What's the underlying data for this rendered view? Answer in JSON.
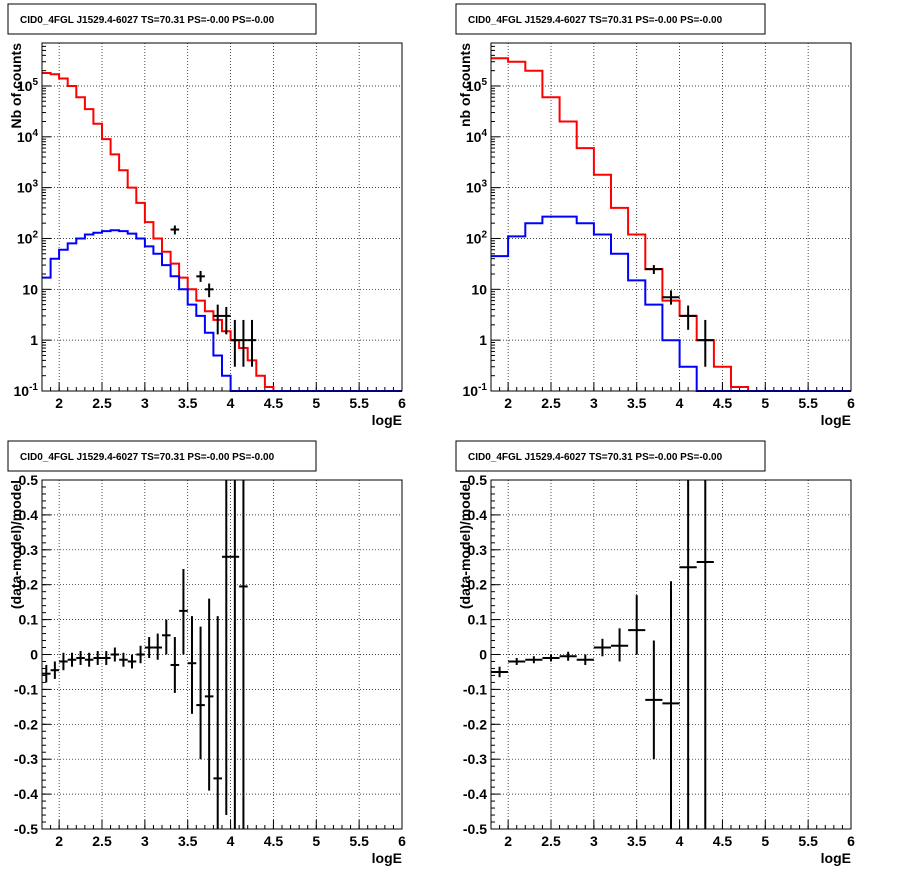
{
  "chart_data": [
    {
      "panel": "top-left",
      "type": "histogram",
      "title": "CID0_4FGL J1529.4-6027 TS=70.31 PS=-0.00 PS=-0.00",
      "xlabel": "logE",
      "ylabel": "Nb of counts",
      "log_y": true,
      "xlim": [
        1.8,
        6.0
      ],
      "ylim": [
        0.1,
        700000
      ],
      "grid": true,
      "x_ticks": [
        "2",
        "2.5",
        "3",
        "3.5",
        "4",
        "4.5",
        "5",
        "5.5",
        "6"
      ],
      "y_ticks": [
        "10^-1",
        "1",
        "10",
        "10^2",
        "10^3",
        "10^4",
        "10^5"
      ],
      "bin_edges": [
        1.8,
        1.9,
        2.0,
        2.1,
        2.2,
        2.3,
        2.4,
        2.5,
        2.6,
        2.7,
        2.8,
        2.9,
        3.0,
        3.1,
        3.2,
        3.3,
        3.4,
        3.5,
        3.6,
        3.7,
        3.8,
        3.9,
        4.0,
        4.1,
        4.2,
        4.3,
        4.4,
        4.5,
        4.6,
        4.7,
        4.8,
        4.9,
        5.0,
        5.1,
        5.2,
        5.3,
        5.4,
        5.5,
        5.6,
        5.7,
        5.8,
        5.9,
        6.0
      ],
      "series": [
        {
          "color": "#ff0000",
          "values": [
            180000,
            170000,
            140000,
            100000,
            60000,
            35000,
            18000,
            9000,
            4500,
            2200,
            1000,
            500,
            210,
            100,
            55,
            32,
            17,
            10,
            6,
            3.7,
            2.5,
            1.5,
            1.0,
            0.7,
            0.4,
            0.2,
            0.12,
            0.1,
            0.1,
            0.1,
            0.1,
            0.1,
            0.1,
            0.1,
            0.1,
            0.1,
            0.1,
            0.1,
            0.1,
            0.1,
            0.1,
            0.1
          ]
        },
        {
          "color": "#0000ff",
          "values": [
            17,
            40,
            60,
            80,
            100,
            120,
            130,
            140,
            145,
            140,
            125,
            100,
            70,
            50,
            30,
            18,
            10,
            5,
            3,
            1.4,
            0.5,
            0.2,
            0.1,
            0.1,
            0.1,
            0.1,
            0.1,
            0.1,
            0.1,
            0.1,
            0.1,
            0.1,
            0.1,
            0.1,
            0.1,
            0.1,
            0.1,
            0.1,
            0.1,
            0.1,
            0.1,
            0.1
          ]
        }
      ],
      "points": [
        {
          "x": 3.35,
          "y": 150,
          "xerr": 0.05,
          "ylo": 120,
          "yhi": 180
        },
        {
          "x": 3.65,
          "y": 18,
          "xerr": 0.05,
          "ylo": 14,
          "yhi": 23
        },
        {
          "x": 3.75,
          "y": 10,
          "xerr": 0.05,
          "ylo": 7,
          "yhi": 13
        },
        {
          "x": 3.85,
          "y": 3,
          "xerr": 0.05,
          "ylo": 1.3,
          "yhi": 5
        },
        {
          "x": 3.95,
          "y": 3,
          "xerr": 0.05,
          "ylo": 1.3,
          "yhi": 4.5
        },
        {
          "x": 4.05,
          "y": 1,
          "xerr": 0.05,
          "ylo": 0.3,
          "yhi": 2.5
        },
        {
          "x": 4.15,
          "y": 1,
          "xerr": 0.05,
          "ylo": 0.3,
          "yhi": 2.5
        },
        {
          "x": 4.25,
          "y": 1,
          "xerr": 0.05,
          "ylo": 0.3,
          "yhi": 2.5
        }
      ]
    },
    {
      "panel": "top-right",
      "type": "histogram",
      "title": "CID0_4FGL J1529.4-6027 TS=70.31 PS=-0.00 PS=-0.00",
      "xlabel": "logE",
      "ylabel": "nb of counts",
      "log_y": true,
      "xlim": [
        1.8,
        6.0
      ],
      "ylim": [
        0.1,
        700000
      ],
      "grid": true,
      "x_ticks": [
        "2",
        "2.5",
        "3",
        "3.5",
        "4",
        "4.5",
        "5",
        "5.5",
        "6"
      ],
      "y_ticks": [
        "10^-1",
        "1",
        "10",
        "10^2",
        "10^3",
        "10^4",
        "10^5"
      ],
      "bin_edges": [
        1.8,
        2.0,
        2.2,
        2.4,
        2.6,
        2.8,
        3.0,
        3.2,
        3.4,
        3.6,
        3.8,
        4.0,
        4.2,
        4.4,
        4.6,
        4.8,
        5.0,
        5.2,
        5.4,
        5.6,
        5.8,
        6.0
      ],
      "series": [
        {
          "color": "#ff0000",
          "values": [
            350000,
            300000,
            200000,
            60000,
            20000,
            6000,
            1800,
            400,
            120,
            25,
            6,
            3,
            1,
            0.3,
            0.12,
            0.1,
            0.1,
            0.1,
            0.1,
            0.1,
            0.1
          ]
        },
        {
          "color": "#0000ff",
          "values": [
            45,
            110,
            200,
            270,
            270,
            200,
            120,
            50,
            15,
            5,
            1,
            0.3,
            0.1,
            0.1,
            0.1,
            0.1,
            0.1,
            0.1,
            0.1,
            0.1,
            0.1
          ]
        }
      ],
      "points": [
        {
          "x": 3.7,
          "y": 25,
          "xerr": 0.1,
          "ylo": 20,
          "yhi": 30
        },
        {
          "x": 3.9,
          "y": 7,
          "xerr": 0.1,
          "ylo": 5,
          "yhi": 9.5
        },
        {
          "x": 4.1,
          "y": 3,
          "xerr": 0.1,
          "ylo": 1.6,
          "yhi": 4.8
        },
        {
          "x": 4.3,
          "y": 1,
          "xerr": 0.1,
          "ylo": 0.3,
          "yhi": 2.5
        }
      ]
    },
    {
      "panel": "bottom-left",
      "type": "scatter",
      "title": "CID0_4FGL J1529.4-6027 TS=70.31 PS=-0.00 PS=-0.00",
      "xlabel": "logE",
      "ylabel": "(data-model)/model",
      "log_y": false,
      "xlim": [
        1.8,
        6.0
      ],
      "ylim": [
        -0.5,
        0.5
      ],
      "grid": true,
      "x_ticks": [
        "2",
        "2.5",
        "3",
        "3.5",
        "4",
        "4.5",
        "5",
        "5.5",
        "6"
      ],
      "y_ticks": [
        "-0.5",
        "-0.4",
        "-0.3",
        "-0.2",
        "-0.1",
        "0",
        "0.1",
        "0.2",
        "0.3",
        "0.4",
        "0.5"
      ],
      "points": [
        {
          "x": 1.85,
          "y": -0.055,
          "xerr": 0.05,
          "ylo": -0.08,
          "yhi": -0.03
        },
        {
          "x": 1.95,
          "y": -0.045,
          "xerr": 0.05,
          "ylo": -0.07,
          "yhi": -0.02
        },
        {
          "x": 2.05,
          "y": -0.02,
          "xerr": 0.05,
          "ylo": -0.045,
          "yhi": 0.005
        },
        {
          "x": 2.15,
          "y": -0.015,
          "xerr": 0.05,
          "ylo": -0.035,
          "yhi": 0.005
        },
        {
          "x": 2.25,
          "y": -0.01,
          "xerr": 0.05,
          "ylo": -0.03,
          "yhi": 0.01
        },
        {
          "x": 2.35,
          "y": -0.015,
          "xerr": 0.05,
          "ylo": -0.035,
          "yhi": 0.005
        },
        {
          "x": 2.45,
          "y": -0.01,
          "xerr": 0.05,
          "ylo": -0.03,
          "yhi": 0.01
        },
        {
          "x": 2.55,
          "y": -0.01,
          "xerr": 0.05,
          "ylo": -0.03,
          "yhi": 0.01
        },
        {
          "x": 2.65,
          "y": 0.0,
          "xerr": 0.05,
          "ylo": -0.02,
          "yhi": 0.02
        },
        {
          "x": 2.75,
          "y": -0.015,
          "xerr": 0.05,
          "ylo": -0.035,
          "yhi": 0.005
        },
        {
          "x": 2.85,
          "y": -0.02,
          "xerr": 0.05,
          "ylo": -0.04,
          "yhi": 0.0
        },
        {
          "x": 2.95,
          "y": 0.0,
          "xerr": 0.05,
          "ylo": -0.025,
          "yhi": 0.025
        },
        {
          "x": 3.05,
          "y": 0.02,
          "xerr": 0.05,
          "ylo": -0.01,
          "yhi": 0.05
        },
        {
          "x": 3.15,
          "y": 0.02,
          "xerr": 0.05,
          "ylo": -0.015,
          "yhi": 0.06
        },
        {
          "x": 3.25,
          "y": 0.055,
          "xerr": 0.05,
          "ylo": 0.0,
          "yhi": 0.1
        },
        {
          "x": 3.35,
          "y": -0.03,
          "xerr": 0.05,
          "ylo": -0.11,
          "yhi": 0.05
        },
        {
          "x": 3.45,
          "y": 0.125,
          "xerr": 0.05,
          "ylo": 0.0,
          "yhi": 0.245
        },
        {
          "x": 3.55,
          "y": -0.025,
          "xerr": 0.05,
          "ylo": -0.17,
          "yhi": 0.11
        },
        {
          "x": 3.65,
          "y": -0.145,
          "xerr": 0.05,
          "ylo": -0.3,
          "yhi": 0.08
        },
        {
          "x": 3.75,
          "y": -0.12,
          "xerr": 0.05,
          "ylo": -0.39,
          "yhi": 0.16
        },
        {
          "x": 3.85,
          "y": -0.355,
          "xerr": 0.05,
          "ylo": -0.5,
          "yhi": 0.11
        },
        {
          "x": 3.95,
          "y": 0.28,
          "xerr": 0.05,
          "ylo": -0.46,
          "yhi": 0.5
        },
        {
          "x": 4.05,
          "y": 0.28,
          "xerr": 0.05,
          "ylo": -0.5,
          "yhi": 0.5
        },
        {
          "x": 4.15,
          "y": 0.195,
          "xerr": 0.05,
          "ylo": -0.5,
          "yhi": 0.5
        }
      ]
    },
    {
      "panel": "bottom-right",
      "type": "scatter",
      "title": "CID0_4FGL J1529.4-6027 TS=70.31 PS=-0.00 PS=-0.00",
      "xlabel": "logE",
      "ylabel": "(data-model)/model",
      "log_y": false,
      "xlim": [
        1.8,
        6.0
      ],
      "ylim": [
        -0.5,
        0.5
      ],
      "grid": true,
      "x_ticks": [
        "2",
        "2.5",
        "3",
        "3.5",
        "4",
        "4.5",
        "5",
        "5.5",
        "6"
      ],
      "y_ticks": [
        "-0.5",
        "-0.4",
        "-0.3",
        "-0.2",
        "-0.1",
        "0",
        "0.1",
        "0.2",
        "0.3",
        "0.4",
        "0.5"
      ],
      "points": [
        {
          "x": 1.9,
          "y": -0.05,
          "xerr": 0.1,
          "ylo": -0.065,
          "yhi": -0.035
        },
        {
          "x": 2.1,
          "y": -0.02,
          "xerr": 0.1,
          "ylo": -0.03,
          "yhi": -0.01
        },
        {
          "x": 2.3,
          "y": -0.015,
          "xerr": 0.1,
          "ylo": -0.025,
          "yhi": -0.005
        },
        {
          "x": 2.5,
          "y": -0.01,
          "xerr": 0.1,
          "ylo": -0.02,
          "yhi": 0.0
        },
        {
          "x": 2.7,
          "y": -0.005,
          "xerr": 0.1,
          "ylo": -0.018,
          "yhi": 0.008
        },
        {
          "x": 2.9,
          "y": -0.015,
          "xerr": 0.1,
          "ylo": -0.03,
          "yhi": 0.0
        },
        {
          "x": 3.1,
          "y": 0.02,
          "xerr": 0.1,
          "ylo": -0.005,
          "yhi": 0.045
        },
        {
          "x": 3.3,
          "y": 0.025,
          "xerr": 0.1,
          "ylo": -0.02,
          "yhi": 0.075
        },
        {
          "x": 3.5,
          "y": 0.07,
          "xerr": 0.1,
          "ylo": 0.0,
          "yhi": 0.17
        },
        {
          "x": 3.7,
          "y": -0.13,
          "xerr": 0.1,
          "ylo": -0.3,
          "yhi": 0.04
        },
        {
          "x": 3.9,
          "y": -0.14,
          "xerr": 0.1,
          "ylo": -0.5,
          "yhi": 0.21
        },
        {
          "x": 4.1,
          "y": 0.25,
          "xerr": 0.1,
          "ylo": -0.5,
          "yhi": 0.5
        },
        {
          "x": 4.3,
          "y": 0.265,
          "xerr": 0.1,
          "ylo": -0.5,
          "yhi": 0.5
        }
      ]
    }
  ]
}
